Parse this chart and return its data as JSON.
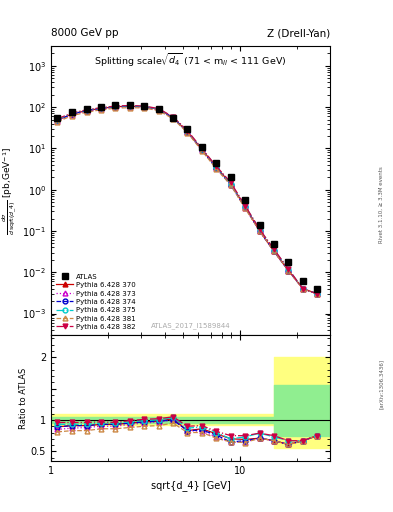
{
  "title_top_left": "8000 GeV pp",
  "title_top_right": "Z (Drell-Yan)",
  "plot_title": "Splitting scale $\\sqrt{d_4}$ (71 < m$_{ll}$ < 111 GeV)",
  "xlabel": "sqrt{d_4} [GeV]",
  "ylabel_main": "dσ\n/dsqrt(d_4) [pb,GeV⁻¹]",
  "ylabel_ratio": "Ratio to ATLAS",
  "watermark": "ATLAS_2017_I1589844",
  "xlim": [
    1,
    30
  ],
  "ylim_main": [
    0.0003,
    3000.0
  ],
  "ylim_ratio": [
    0.35,
    2.35
  ],
  "atlas_x": [
    1.08,
    1.29,
    1.54,
    1.84,
    2.19,
    2.61,
    3.11,
    3.71,
    4.42,
    5.27,
    6.28,
    7.49,
    8.93,
    10.65,
    12.7,
    15.14,
    18.04,
    21.51,
    25.65
  ],
  "atlas_y": [
    54,
    75,
    90,
    100,
    110,
    110,
    105,
    90,
    55,
    30,
    11,
    4.5,
    2.0,
    0.55,
    0.14,
    0.048,
    0.018,
    0.006,
    0.004
  ],
  "py370_x": [
    1.08,
    1.29,
    1.54,
    1.84,
    2.19,
    2.61,
    3.11,
    3.71,
    4.42,
    5.27,
    6.28,
    7.49,
    8.93,
    10.65,
    12.7,
    15.14,
    18.04,
    21.51,
    25.65
  ],
  "py370_y": [
    48,
    68,
    82,
    93,
    102,
    105,
    102,
    88,
    56,
    25,
    9.5,
    3.5,
    1.4,
    0.38,
    0.1,
    0.032,
    0.011,
    0.004,
    0.003
  ],
  "py370_ratio": [
    0.89,
    0.91,
    0.91,
    0.93,
    0.93,
    0.95,
    0.97,
    0.98,
    1.02,
    0.83,
    0.86,
    0.78,
    0.7,
    0.69,
    0.71,
    0.67,
    0.61,
    0.67,
    0.75
  ],
  "py373_x": [
    1.08,
    1.29,
    1.54,
    1.84,
    2.19,
    2.61,
    3.11,
    3.71,
    4.42,
    5.27,
    6.28,
    7.49,
    8.93,
    10.65,
    12.7,
    15.14,
    18.04,
    21.51,
    25.65
  ],
  "py373_y": [
    46,
    65,
    79,
    90,
    99,
    102,
    100,
    87,
    55,
    25,
    9.0,
    3.3,
    1.3,
    0.36,
    0.1,
    0.032,
    0.011,
    0.004,
    0.003
  ],
  "py373_ratio": [
    0.85,
    0.87,
    0.88,
    0.9,
    0.9,
    0.93,
    0.95,
    0.97,
    1.0,
    0.83,
    0.82,
    0.73,
    0.65,
    0.65,
    0.71,
    0.67,
    0.61,
    0.67,
    0.75
  ],
  "py374_x": [
    1.08,
    1.29,
    1.54,
    1.84,
    2.19,
    2.61,
    3.11,
    3.71,
    4.42,
    5.27,
    6.28,
    7.49,
    8.93,
    10.65,
    12.7,
    15.14,
    18.04,
    21.51,
    25.65
  ],
  "py374_y": [
    48,
    68,
    82,
    93,
    102,
    105,
    102,
    88,
    55,
    25,
    9.2,
    3.4,
    1.3,
    0.37,
    0.1,
    0.032,
    0.011,
    0.004,
    0.003
  ],
  "py374_ratio": [
    0.89,
    0.91,
    0.91,
    0.93,
    0.93,
    0.95,
    0.97,
    0.98,
    1.0,
    0.83,
    0.84,
    0.76,
    0.65,
    0.67,
    0.71,
    0.67,
    0.61,
    0.67,
    0.75
  ],
  "py375_x": [
    1.08,
    1.29,
    1.54,
    1.84,
    2.19,
    2.61,
    3.11,
    3.71,
    4.42,
    5.27,
    6.28,
    7.49,
    8.93,
    10.65,
    12.7,
    15.14,
    18.04,
    21.51,
    25.65
  ],
  "py375_y": [
    50,
    70,
    84,
    95,
    104,
    107,
    104,
    90,
    57,
    26,
    9.8,
    3.6,
    1.4,
    0.4,
    0.11,
    0.035,
    0.012,
    0.004,
    0.003
  ],
  "py375_ratio": [
    0.93,
    0.93,
    0.93,
    0.95,
    0.95,
    0.97,
    0.99,
    1.0,
    1.04,
    0.87,
    0.89,
    0.8,
    0.7,
    0.73,
    0.79,
    0.73,
    0.67,
    0.67,
    0.75
  ],
  "py381_x": [
    1.08,
    1.29,
    1.54,
    1.84,
    2.19,
    2.61,
    3.11,
    3.71,
    4.42,
    5.27,
    6.28,
    7.49,
    8.93,
    10.65,
    12.7,
    15.14,
    18.04,
    21.51,
    25.65
  ],
  "py381_y": [
    44,
    62,
    75,
    86,
    94,
    97,
    95,
    82,
    52,
    24,
    8.8,
    3.2,
    1.3,
    0.35,
    0.1,
    0.032,
    0.011,
    0.004,
    0.003
  ],
  "py381_ratio": [
    0.81,
    0.83,
    0.83,
    0.86,
    0.86,
    0.88,
    0.9,
    0.91,
    0.95,
    0.8,
    0.8,
    0.71,
    0.65,
    0.64,
    0.71,
    0.67,
    0.61,
    0.67,
    0.75
  ],
  "py382_x": [
    1.08,
    1.29,
    1.54,
    1.84,
    2.19,
    2.61,
    3.11,
    3.71,
    4.42,
    5.27,
    6.28,
    7.49,
    8.93,
    10.65,
    12.7,
    15.14,
    18.04,
    21.51,
    25.65
  ],
  "py382_y": [
    52,
    72,
    86,
    97,
    106,
    109,
    106,
    92,
    58,
    27,
    10.0,
    3.7,
    1.5,
    0.41,
    0.11,
    0.036,
    0.012,
    0.004,
    0.003
  ],
  "py382_ratio": [
    0.96,
    0.96,
    0.96,
    0.97,
    0.96,
    0.99,
    1.01,
    1.02,
    1.05,
    0.9,
    0.91,
    0.82,
    0.75,
    0.75,
    0.79,
    0.75,
    0.67,
    0.67,
    0.75
  ],
  "colors": {
    "py370": "#cc0000",
    "py373": "#cc00cc",
    "py374": "#0000cc",
    "py375": "#00cccc",
    "py381": "#cc8844",
    "py382": "#cc0044"
  },
  "right_label": "Rivet 3.1.10, ≥ 3.3M events",
  "arxiv_label": "[arXiv:1306.3436]"
}
